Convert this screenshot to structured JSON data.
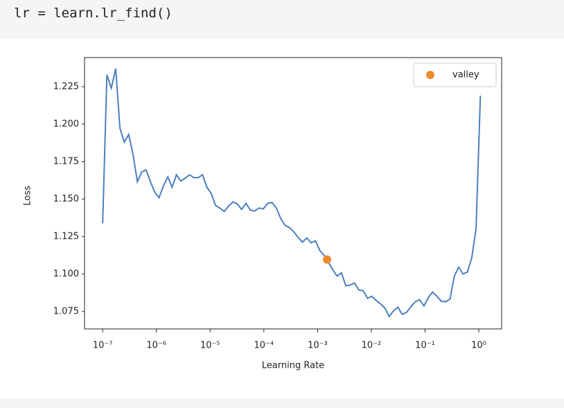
{
  "code": "lr = learn.lr_find()",
  "chart_data": {
    "type": "line",
    "xlabel": "Learning Rate",
    "ylabel": "Loss",
    "xscale": "log",
    "legend": "upper right",
    "x": [
      1e-07,
      1.2e-07,
      1.45e-07,
      1.75e-07,
      2.1e-07,
      2.53e-07,
      3.05e-07,
      3.68e-07,
      4.43e-07,
      5.33e-07,
      6.43e-07,
      7.74e-07,
      9.32e-07,
      1.12e-06,
      1.35e-06,
      1.63e-06,
      1.96e-06,
      2.36e-06,
      2.85e-06,
      3.43e-06,
      4.13e-06,
      4.98e-06,
      5.99e-06,
      7.22e-06,
      8.7e-06,
      1.05e-05,
      1.26e-05,
      1.52e-05,
      1.83e-05,
      2.21e-05,
      2.66e-05,
      3.2e-05,
      3.86e-05,
      4.65e-05,
      5.6e-05,
      6.74e-05,
      8.12e-05,
      9.78e-05,
      0.000118,
      0.000142,
      0.000171,
      0.000206,
      0.000248,
      0.000299,
      0.00036,
      0.000433,
      0.000522,
      0.000629,
      0.000757,
      0.000912,
      0.0011,
      0.00132,
      0.00159,
      0.00192,
      0.00231,
      0.00278,
      0.00335,
      0.00404,
      0.00486,
      0.00586,
      0.00705,
      0.00849,
      0.0102,
      0.0123,
      0.0148,
      0.0179,
      0.0215,
      0.0259,
      0.0312,
      0.0376,
      0.0453,
      0.0545,
      0.0657,
      0.0791,
      0.0953,
      0.115,
      0.138,
      0.166,
      0.2,
      0.241,
      0.291,
      0.35,
      0.422,
      0.508,
      0.612,
      0.737,
      0.888,
      1.07
    ],
    "series": [
      {
        "color": "#4c7fbd",
        "values": [
          1.1338,
          1.2329,
          1.2241,
          1.237,
          1.1972,
          1.188,
          1.1931,
          1.1796,
          1.1616,
          1.1681,
          1.1694,
          1.1616,
          1.1546,
          1.1509,
          1.1588,
          1.1648,
          1.1579,
          1.1662,
          1.162,
          1.1639,
          1.1662,
          1.1643,
          1.1643,
          1.1662,
          1.1579,
          1.1537,
          1.1458,
          1.144,
          1.1417,
          1.1454,
          1.1481,
          1.1468,
          1.1431,
          1.1472,
          1.1426,
          1.1421,
          1.144,
          1.1435,
          1.1472,
          1.1477,
          1.144,
          1.137,
          1.1324,
          1.131,
          1.1282,
          1.1245,
          1.1213,
          1.1241,
          1.1208,
          1.1222,
          1.1157,
          1.1125,
          1.1079,
          1.1028,
          1.0986,
          1.1009,
          1.0921,
          1.0926,
          1.094,
          1.0893,
          1.0889,
          1.0838,
          1.0852,
          1.0824,
          1.0801,
          1.0773,
          1.0717,
          1.0755,
          1.0778,
          1.0731,
          1.0745,
          1.0782,
          1.0815,
          1.0829,
          1.0787,
          1.0843,
          1.088,
          1.0852,
          1.0819,
          1.0815,
          1.0833,
          1.0986,
          1.1046,
          1.1,
          1.1014,
          1.1106,
          1.1301,
          1.219
        ]
      },
      {
        "name": "valley",
        "type": "scatter",
        "color": "#ee8a2f",
        "x": [
          0.0015
        ],
        "values": [
          1.1097
        ]
      }
    ],
    "xlim": [
      4.6e-08,
      2.66
    ],
    "xticks": [
      {
        "value": 1e-07,
        "label": "10⁻⁷"
      },
      {
        "value": 1e-06,
        "label": "10⁻⁶"
      },
      {
        "value": 1e-05,
        "label": "10⁻⁵"
      },
      {
        "value": 0.0001,
        "label": "10⁻⁴"
      },
      {
        "value": 0.001,
        "label": "10⁻³"
      },
      {
        "value": 0.01,
        "label": "10⁻²"
      },
      {
        "value": 0.1,
        "label": "10⁻¹"
      },
      {
        "value": 1,
        "label": "10⁰"
      }
    ],
    "ylim": [
      1.0634,
      1.2444
    ],
    "yticks": [
      1.075,
      {
        "value": 1.1,
        "label": "1.100"
      },
      1.125,
      {
        "value": 1.15,
        "label": "1.150"
      },
      1.175,
      {
        "value": 1.2,
        "label": "1.200"
      },
      1.225
    ]
  }
}
